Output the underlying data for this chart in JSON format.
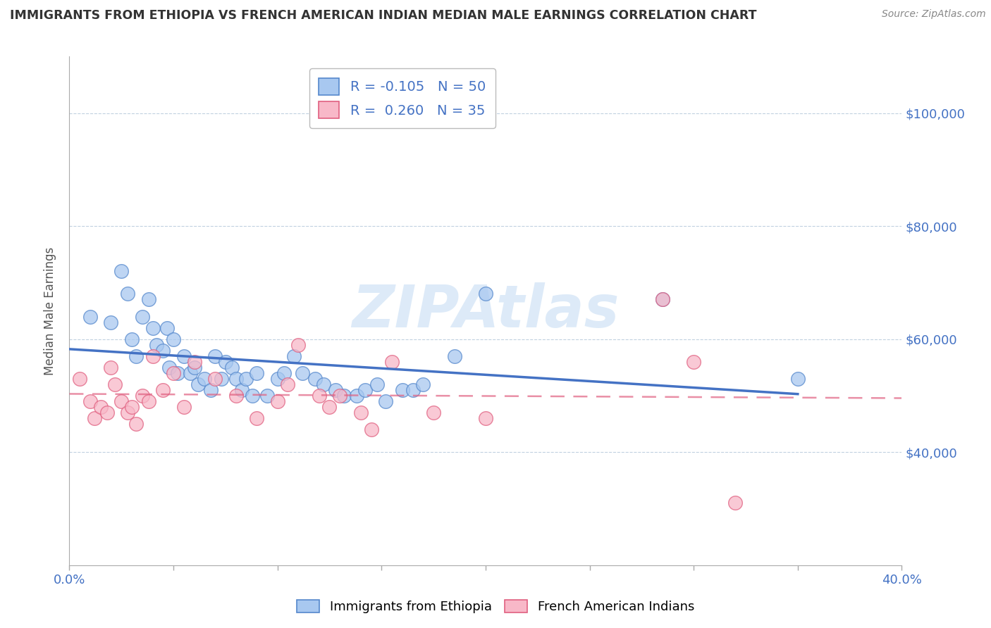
{
  "title": "IMMIGRANTS FROM ETHIOPIA VS FRENCH AMERICAN INDIAN MEDIAN MALE EARNINGS CORRELATION CHART",
  "source": "Source: ZipAtlas.com",
  "ylabel": "Median Male Earnings",
  "xlim": [
    0.0,
    0.4
  ],
  "ylim": [
    20000,
    110000
  ],
  "yticks": [
    40000,
    60000,
    80000,
    100000
  ],
  "ytick_labels": [
    "$40,000",
    "$60,000",
    "$80,000",
    "$100,000"
  ],
  "xticks": [
    0.0,
    0.05,
    0.1,
    0.15,
    0.2,
    0.25,
    0.3,
    0.35,
    0.4
  ],
  "xtick_labels": [
    "0.0%",
    "",
    "",
    "",
    "",
    "",
    "",
    "",
    "40.0%"
  ],
  "legend_blue_r": "R = -0.105",
  "legend_blue_n": "N = 50",
  "legend_pink_r": "R =  0.260",
  "legend_pink_n": "N = 35",
  "blue_color": "#A8C8F0",
  "pink_color": "#F8B8C8",
  "blue_edge_color": "#5588CC",
  "pink_edge_color": "#E06080",
  "blue_line_color": "#4472C4",
  "pink_line_color": "#E06080",
  "watermark": "ZIPAtlas",
  "blue_x": [
    0.01,
    0.02,
    0.025,
    0.028,
    0.03,
    0.032,
    0.035,
    0.038,
    0.04,
    0.042,
    0.045,
    0.047,
    0.048,
    0.05,
    0.052,
    0.055,
    0.058,
    0.06,
    0.062,
    0.065,
    0.068,
    0.07,
    0.073,
    0.075,
    0.078,
    0.08,
    0.083,
    0.085,
    0.088,
    0.09,
    0.095,
    0.1,
    0.103,
    0.108,
    0.112,
    0.118,
    0.122,
    0.128,
    0.132,
    0.138,
    0.142,
    0.148,
    0.152,
    0.16,
    0.165,
    0.17,
    0.185,
    0.2,
    0.285,
    0.35
  ],
  "blue_y": [
    64000,
    63000,
    72000,
    68000,
    60000,
    57000,
    64000,
    67000,
    62000,
    59000,
    58000,
    62000,
    55000,
    60000,
    54000,
    57000,
    54000,
    55000,
    52000,
    53000,
    51000,
    57000,
    53000,
    56000,
    55000,
    53000,
    51000,
    53000,
    50000,
    54000,
    50000,
    53000,
    54000,
    57000,
    54000,
    53000,
    52000,
    51000,
    50000,
    50000,
    51000,
    52000,
    49000,
    51000,
    51000,
    52000,
    57000,
    68000,
    67000,
    53000
  ],
  "pink_x": [
    0.005,
    0.01,
    0.012,
    0.015,
    0.018,
    0.02,
    0.022,
    0.025,
    0.028,
    0.03,
    0.032,
    0.035,
    0.038,
    0.04,
    0.045,
    0.05,
    0.055,
    0.06,
    0.07,
    0.08,
    0.09,
    0.1,
    0.105,
    0.11,
    0.12,
    0.125,
    0.13,
    0.14,
    0.145,
    0.155,
    0.175,
    0.2,
    0.285,
    0.3,
    0.32
  ],
  "pink_y": [
    53000,
    49000,
    46000,
    48000,
    47000,
    55000,
    52000,
    49000,
    47000,
    48000,
    45000,
    50000,
    49000,
    57000,
    51000,
    54000,
    48000,
    56000,
    53000,
    50000,
    46000,
    49000,
    52000,
    59000,
    50000,
    48000,
    50000,
    47000,
    44000,
    56000,
    47000,
    46000,
    67000,
    56000,
    31000
  ]
}
